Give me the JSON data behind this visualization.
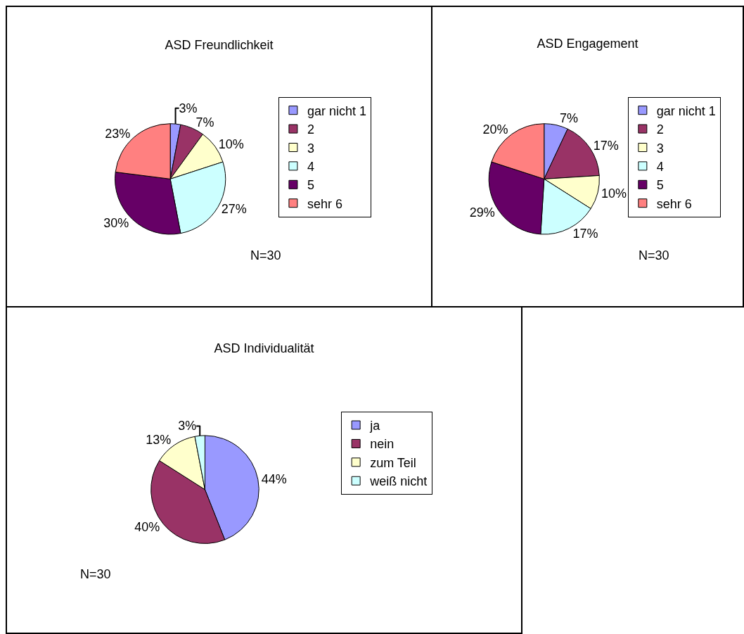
{
  "chart_data": [
    {
      "type": "pie",
      "title": "ASD Freundlichkeit",
      "categories": [
        "gar nicht 1",
        "2",
        "3",
        "4",
        "5",
        "sehr 6"
      ],
      "values": [
        3,
        7,
        10,
        27,
        30,
        23
      ],
      "colors": [
        "#9999ff",
        "#993366",
        "#ffffcc",
        "#ccffff",
        "#660066",
        "#ff8080"
      ],
      "value_labels": [
        "3%",
        "7%",
        "10%",
        "27%",
        "30%",
        "23%"
      ],
      "legend": "right",
      "annotations": [
        "N=30"
      ]
    },
    {
      "type": "pie",
      "title": "ASD Engagement",
      "categories": [
        "gar nicht 1",
        "2",
        "3",
        "4",
        "5",
        "sehr 6"
      ],
      "values": [
        7,
        17,
        10,
        17,
        29,
        20
      ],
      "colors": [
        "#9999ff",
        "#993366",
        "#ffffcc",
        "#ccffff",
        "#660066",
        "#ff8080"
      ],
      "value_labels": [
        "7%",
        "17%",
        "10%",
        "17%",
        "29%",
        "20%"
      ],
      "legend": "right",
      "annotations": [
        "N=30"
      ]
    },
    {
      "type": "pie",
      "title": "ASD Individualität",
      "categories": [
        "ja",
        "nein",
        "zum Teil",
        "weiß nicht"
      ],
      "values": [
        44,
        40,
        13,
        3
      ],
      "colors": [
        "#9999ff",
        "#993366",
        "#ffffcc",
        "#ccffff"
      ],
      "value_labels": [
        "44%",
        "40%",
        "13%",
        "3%"
      ],
      "legend": "right",
      "annotations": [
        "N=30"
      ]
    }
  ]
}
